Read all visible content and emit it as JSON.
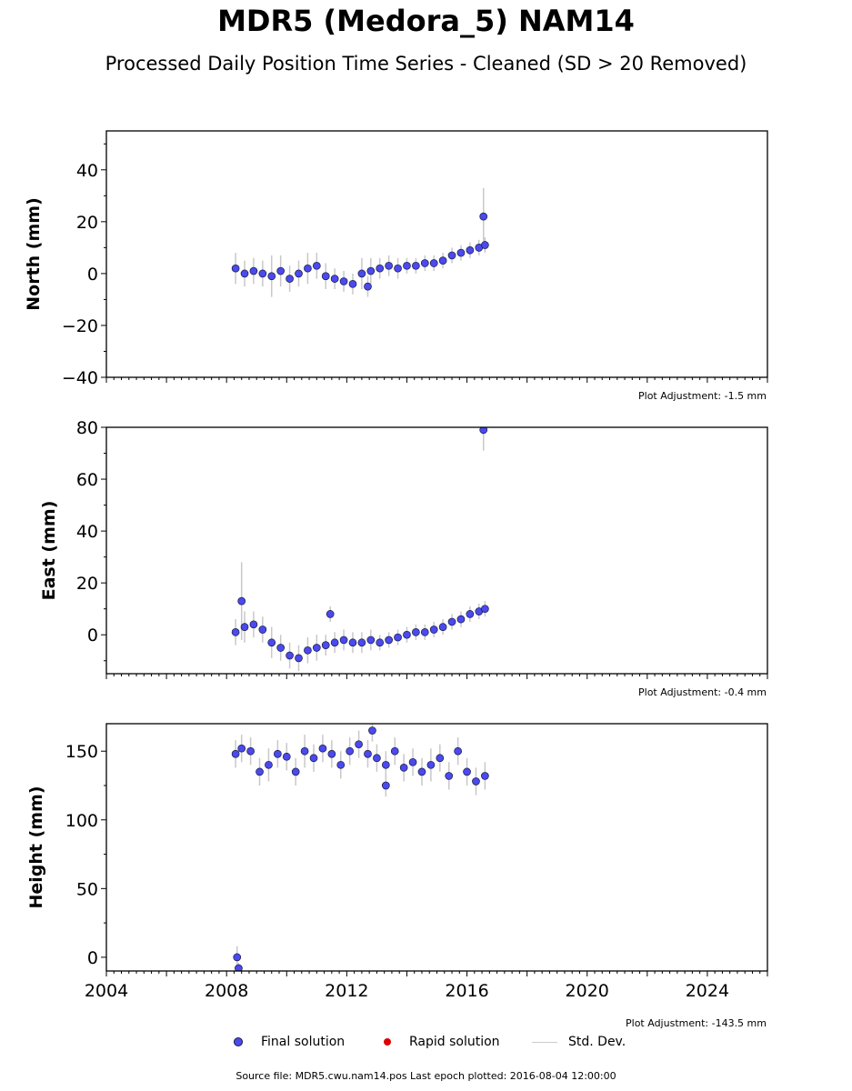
{
  "title": "MDR5 (Medora_5) NAM14",
  "subtitle": "Processed Daily Position Time Series - Cleaned (SD > 20 Removed)",
  "colors": {
    "final": "#4a4aee",
    "rapid": "#dd0000",
    "stddev": "#c8c8c8",
    "edge": "#1a1a40"
  },
  "legend": {
    "final": "Final solution",
    "rapid": "Rapid solution",
    "stddev": "Std. Dev."
  },
  "source_text": "Source file: MDR5.cwu.nam14.pos  Last epoch plotted: 2016-08-04 12:00:00",
  "chart_data": [
    {
      "type": "scatter",
      "ylabel": "North (mm)",
      "adjustment": "Plot Adjustment: -1.5 mm",
      "xlim": [
        2004,
        2026
      ],
      "ylim": [
        -40,
        55
      ],
      "yticks": [
        -40,
        -20,
        0,
        20,
        40
      ],
      "xticks": [
        2004,
        2008,
        2012,
        2016,
        2020,
        2024
      ],
      "show_xtick_labels": false,
      "series": [
        {
          "x": [
            2008.3,
            2008.6,
            2008.9,
            2009.2,
            2009.5,
            2009.8,
            2010.1,
            2010.4,
            2010.7,
            2011.0,
            2011.3,
            2011.6,
            2011.9,
            2012.2,
            2012.5,
            2012.8,
            2013.1,
            2013.4,
            2013.7,
            2014.0,
            2014.3,
            2014.6,
            2014.9,
            2015.2,
            2015.5,
            2015.8,
            2016.1,
            2016.4,
            2016.6,
            2016.55,
            2012.7
          ],
          "y": [
            2,
            0,
            1,
            0,
            -1,
            1,
            -2,
            0,
            2,
            3,
            -1,
            -2,
            -3,
            -4,
            0,
            1,
            2,
            3,
            2,
            3,
            3,
            4,
            4,
            5,
            7,
            8,
            9,
            10,
            11,
            22,
            -5
          ],
          "err": [
            6,
            5,
            5,
            5,
            8,
            6,
            5,
            5,
            6,
            5,
            5,
            4,
            4,
            4,
            6,
            5,
            4,
            4,
            4,
            3,
            3,
            3,
            3,
            3,
            3,
            3,
            3,
            3,
            3,
            11,
            4
          ]
        }
      ]
    },
    {
      "type": "scatter",
      "ylabel": "East (mm)",
      "adjustment": "Plot Adjustment: -0.4 mm",
      "xlim": [
        2004,
        2026
      ],
      "ylim": [
        -15,
        80
      ],
      "yticks": [
        0,
        20,
        40,
        60,
        80
      ],
      "xticks": [
        2004,
        2008,
        2012,
        2016,
        2020,
        2024
      ],
      "show_xtick_labels": false,
      "series": [
        {
          "x": [
            2008.3,
            2008.6,
            2008.9,
            2009.2,
            2009.5,
            2009.8,
            2010.1,
            2010.4,
            2010.7,
            2011.0,
            2011.3,
            2011.6,
            2011.9,
            2012.2,
            2012.5,
            2012.8,
            2013.1,
            2013.4,
            2013.7,
            2014.0,
            2014.3,
            2014.6,
            2014.9,
            2015.2,
            2015.5,
            2015.8,
            2016.1,
            2016.4,
            2016.6,
            2016.55,
            2008.5,
            2011.45
          ],
          "y": [
            1,
            3,
            4,
            2,
            -3,
            -5,
            -8,
            -9,
            -6,
            -5,
            -4,
            -3,
            -2,
            -3,
            -3,
            -2,
            -3,
            -2,
            -1,
            0,
            1,
            1,
            2,
            3,
            5,
            6,
            8,
            9,
            10,
            79,
            13,
            8
          ],
          "err": [
            5,
            6,
            5,
            5,
            6,
            5,
            5,
            5,
            5,
            5,
            4,
            4,
            4,
            4,
            4,
            4,
            3,
            3,
            3,
            3,
            3,
            3,
            3,
            3,
            3,
            3,
            3,
            3,
            3,
            8,
            15,
            3
          ]
        }
      ]
    },
    {
      "type": "scatter",
      "ylabel": "Height (mm)",
      "adjustment": "Plot Adjustment: -143.5 mm",
      "xlim": [
        2004,
        2026
      ],
      "ylim": [
        -10,
        170
      ],
      "yticks": [
        0,
        50,
        100,
        150
      ],
      "xticks": [
        2004,
        2008,
        2012,
        2016,
        2020,
        2024
      ],
      "show_xtick_labels": true,
      "series": [
        {
          "x": [
            2008.3,
            2008.5,
            2008.8,
            2009.1,
            2009.4,
            2009.7,
            2010.0,
            2010.3,
            2010.6,
            2010.9,
            2011.2,
            2011.5,
            2011.8,
            2012.1,
            2012.4,
            2012.7,
            2013.0,
            2013.3,
            2013.6,
            2013.9,
            2014.2,
            2014.5,
            2014.8,
            2015.1,
            2015.4,
            2015.7,
            2016.0,
            2016.3,
            2016.6,
            2008.35,
            2008.4,
            2012.85,
            2013.3
          ],
          "y": [
            148,
            152,
            150,
            135,
            140,
            148,
            146,
            135,
            150,
            145,
            152,
            148,
            140,
            150,
            155,
            148,
            145,
            140,
            150,
            138,
            142,
            135,
            140,
            145,
            132,
            150,
            135,
            128,
            132,
            0,
            -8,
            165,
            125
          ],
          "err": [
            10,
            10,
            10,
            10,
            12,
            10,
            10,
            10,
            12,
            10,
            10,
            10,
            10,
            10,
            10,
            10,
            10,
            10,
            10,
            10,
            10,
            10,
            12,
            10,
            10,
            10,
            10,
            10,
            10,
            8,
            4,
            8,
            8
          ]
        }
      ]
    }
  ]
}
